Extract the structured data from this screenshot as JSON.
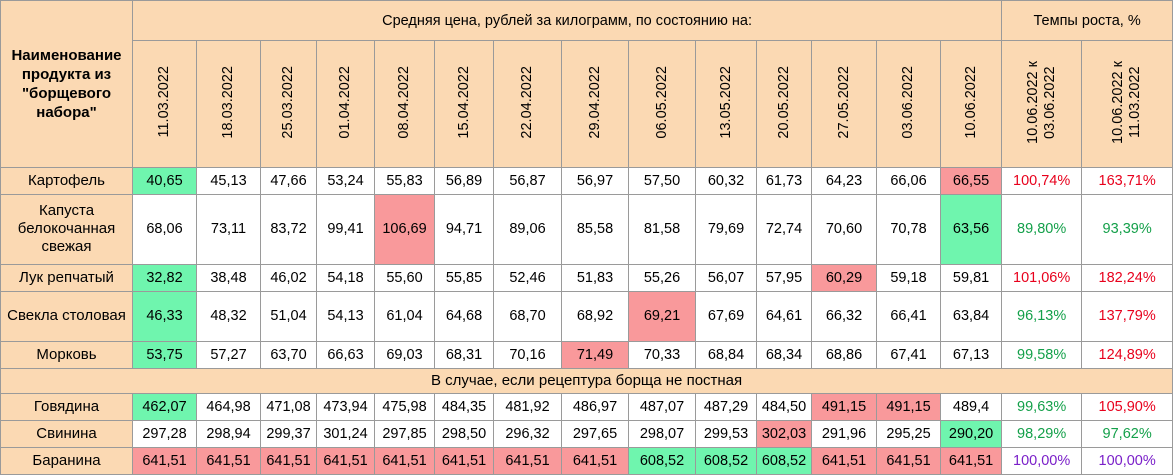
{
  "header": {
    "name_column": "Наименование продукта из \"борщевого набора\"",
    "avg_price_title": "Средняя цена, рублей за килограмм, по состоянию на:",
    "growth_title": "Темпы роста, %",
    "dates": [
      "11.03.2022",
      "18.03.2022",
      "25.03.2022",
      "01.04.2022",
      "08.04.2022",
      "15.04.2022",
      "22.04.2022",
      "29.04.2022",
      "06.05.2022",
      "13.05.2022",
      "20.05.2022",
      "27.05.2022",
      "03.06.2022",
      "10.06.2022"
    ],
    "growth_cols": [
      {
        "line1": "10.06.2022 к",
        "line2": "03.06.2022"
      },
      {
        "line1": "10.06.2022 к",
        "line2": "11.03.2022"
      }
    ]
  },
  "section_label": "В случае, если рецептура борща не постная",
  "colors": {
    "header_bg": "#fbd9b3",
    "min_highlight": "#6ff5ae",
    "max_highlight": "#f9999b",
    "growth_red": "#e8001c",
    "growth_green": "#14a04a",
    "growth_purple": "#7a1fc9"
  },
  "rows": [
    {
      "name": "Картофель",
      "values": [
        "40,65",
        "45,13",
        "47,66",
        "53,24",
        "55,83",
        "56,89",
        "56,87",
        "56,97",
        "57,50",
        "60,32",
        "61,73",
        "64,23",
        "66,06",
        "66,55"
      ],
      "green": [
        0
      ],
      "red": [
        13
      ],
      "growth": [
        {
          "v": "100,74%",
          "c": "red"
        },
        {
          "v": "163,71%",
          "c": "red"
        }
      ]
    },
    {
      "name": "Капуста белокочанная свежая",
      "values": [
        "68,06",
        "73,11",
        "83,72",
        "99,41",
        "106,69",
        "94,71",
        "89,06",
        "85,58",
        "81,58",
        "79,69",
        "72,74",
        "70,60",
        "70,78",
        "63,56"
      ],
      "green": [
        13
      ],
      "red": [
        4
      ],
      "growth": [
        {
          "v": "89,80%",
          "c": "green"
        },
        {
          "v": "93,39%",
          "c": "green"
        }
      ]
    },
    {
      "name": "Лук репчатый",
      "values": [
        "32,82",
        "38,48",
        "46,02",
        "54,18",
        "55,60",
        "55,85",
        "52,46",
        "51,83",
        "55,26",
        "56,07",
        "57,95",
        "60,29",
        "59,18",
        "59,81"
      ],
      "green": [
        0
      ],
      "red": [
        11
      ],
      "growth": [
        {
          "v": "101,06%",
          "c": "red"
        },
        {
          "v": "182,24%",
          "c": "red"
        }
      ]
    },
    {
      "name": "Свекла столовая",
      "values": [
        "46,33",
        "48,32",
        "51,04",
        "54,13",
        "61,04",
        "64,68",
        "68,70",
        "68,92",
        "69,21",
        "67,69",
        "64,61",
        "66,32",
        "66,41",
        "63,84"
      ],
      "green": [
        0
      ],
      "red": [
        8
      ],
      "growth": [
        {
          "v": "96,13%",
          "c": "green"
        },
        {
          "v": "137,79%",
          "c": "red"
        }
      ]
    },
    {
      "name": "Морковь",
      "values": [
        "53,75",
        "57,27",
        "63,70",
        "66,63",
        "69,03",
        "68,31",
        "70,16",
        "71,49",
        "70,33",
        "68,84",
        "68,34",
        "68,86",
        "67,41",
        "67,13"
      ],
      "green": [
        0
      ],
      "red": [
        7
      ],
      "growth": [
        {
          "v": "99,58%",
          "c": "green"
        },
        {
          "v": "124,89%",
          "c": "red"
        }
      ]
    }
  ],
  "rows2": [
    {
      "name": "Говядина",
      "values": [
        "462,07",
        "464,98",
        "471,08",
        "473,94",
        "475,98",
        "484,35",
        "481,92",
        "486,97",
        "487,07",
        "487,29",
        "484,50",
        "491,15",
        "491,15",
        "489,4"
      ],
      "green": [
        0
      ],
      "red": [
        11,
        12
      ],
      "growth": [
        {
          "v": "99,63%",
          "c": "green"
        },
        {
          "v": "105,90%",
          "c": "red"
        }
      ]
    },
    {
      "name": "Свинина",
      "values": [
        "297,28",
        "298,94",
        "299,37",
        "301,24",
        "297,85",
        "298,50",
        "296,32",
        "297,65",
        "298,07",
        "299,53",
        "302,03",
        "291,96",
        "295,25",
        "290,20"
      ],
      "green": [
        13
      ],
      "red": [
        10
      ],
      "growth": [
        {
          "v": "98,29%",
          "c": "green"
        },
        {
          "v": "97,62%",
          "c": "green"
        }
      ]
    },
    {
      "name": "Баранина",
      "values": [
        "641,51",
        "641,51",
        "641,51",
        "641,51",
        "641,51",
        "641,51",
        "641,51",
        "641,51",
        "608,52",
        "608,52",
        "608,52",
        "641,51",
        "641,51",
        "641,51"
      ],
      "green": [
        8,
        9,
        10
      ],
      "red": [
        0,
        1,
        2,
        3,
        4,
        5,
        6,
        7,
        11,
        12,
        13
      ],
      "growth": [
        {
          "v": "100,00%",
          "c": "purple"
        },
        {
          "v": "100,00%",
          "c": "purple"
        }
      ]
    }
  ]
}
